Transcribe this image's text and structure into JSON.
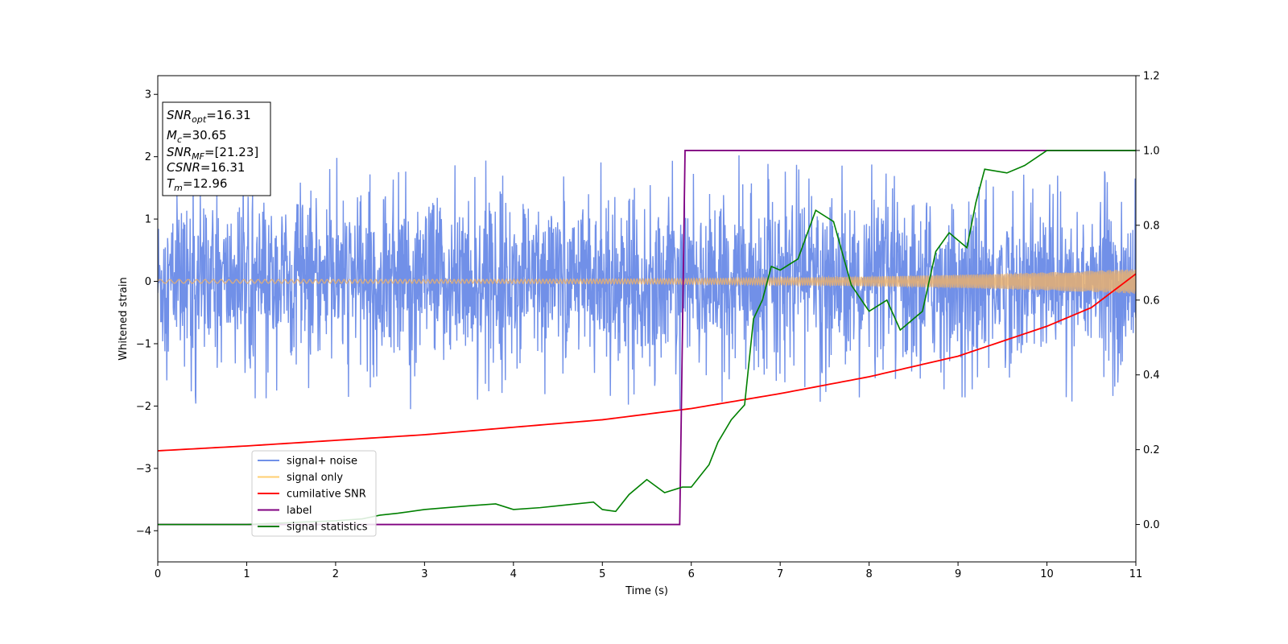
{
  "chart_data": {
    "type": "line",
    "xlabel": "Time (s)",
    "ylabel": "Whitened strain",
    "xlim": [
      0,
      11
    ],
    "ylim_left": [
      -4.5,
      3.3
    ],
    "ylim_right": [
      -0.1,
      1.2
    ],
    "x_ticks": [
      "0",
      "1",
      "2",
      "3",
      "4",
      "5",
      "6",
      "7",
      "8",
      "9",
      "10",
      "11"
    ],
    "y_ticks_left": [
      "3",
      "2",
      "1",
      "0",
      "−1",
      "−2",
      "−3",
      "−4"
    ],
    "y_ticks_right": [
      "1.2",
      "1.0",
      "0.8",
      "0.6",
      "0.4",
      "0.2",
      "0.0"
    ],
    "annotation": {
      "lines": [
        {
          "var": "SNR",
          "sub": "opt",
          "value": "=16.31"
        },
        {
          "var": "M",
          "sub": "c",
          "value": "=30.65"
        },
        {
          "var": "SNR",
          "sub": "MF",
          "value": "=[21.23]"
        },
        {
          "var": "CSNR",
          "sub": "",
          "value": "=16.31"
        },
        {
          "var": "T",
          "sub": "m",
          "value": "=12.96"
        }
      ]
    },
    "legend": {
      "position": "lower left",
      "entries": [
        {
          "label": "signal+ noise",
          "color": "#7190e8"
        },
        {
          "label": "signal only",
          "color": "#ffcf70"
        },
        {
          "label": "cumilative SNR",
          "color": "#ff0000"
        },
        {
          "label": "label",
          "color": "#800080"
        },
        {
          "label": "signal statistics",
          "color": "#008000"
        }
      ]
    },
    "series": [
      {
        "name": "signal+ noise",
        "axis": "left",
        "color": "#7190e8",
        "description": "whitened noisy strain, roughly uniform amplitude about 0 with spikes between -2.05 and 2.1",
        "envelope": {
          "min": -2.05,
          "max": 2.1,
          "typical_amplitude": 1.1
        }
      },
      {
        "name": "signal only",
        "axis": "left",
        "color": "#e8b070",
        "description": "chirp waveform centered at 0, amplitude growing from about 0.03 at t=0 to about 0.2 at t=11"
      },
      {
        "name": "cumilative SNR",
        "axis": "right",
        "color": "#ff0000",
        "x": [
          0,
          1,
          2,
          3,
          4,
          5,
          6,
          7,
          8,
          9,
          10,
          10.5,
          11
        ],
        "y": [
          0.197,
          0.21,
          0.225,
          0.24,
          0.26,
          0.28,
          0.31,
          0.35,
          0.395,
          0.45,
          0.53,
          0.58,
          0.67
        ]
      },
      {
        "name": "label",
        "axis": "right",
        "color": "#800080",
        "x": [
          0,
          5.87,
          5.93,
          11
        ],
        "y": [
          0,
          0,
          1,
          1
        ]
      },
      {
        "name": "signal statistics",
        "axis": "right",
        "color": "#008000",
        "x": [
          0,
          0.5,
          1.0,
          1.5,
          2.0,
          2.3,
          2.5,
          2.7,
          3.0,
          3.5,
          3.8,
          4.0,
          4.3,
          4.5,
          4.9,
          5.0,
          5.15,
          5.3,
          5.5,
          5.7,
          5.9,
          6.0,
          6.1,
          6.2,
          6.3,
          6.45,
          6.6,
          6.7,
          6.8,
          6.9,
          7.0,
          7.2,
          7.4,
          7.6,
          7.8,
          8.0,
          8.2,
          8.35,
          8.5,
          8.6,
          8.75,
          8.9,
          9.1,
          9.2,
          9.3,
          9.55,
          9.75,
          10.0,
          10.5,
          11.0
        ],
        "y": [
          0.0,
          0.0,
          0.0,
          0.005,
          0.01,
          0.015,
          0.025,
          0.03,
          0.04,
          0.05,
          0.055,
          0.04,
          0.045,
          0.05,
          0.06,
          0.04,
          0.035,
          0.08,
          0.12,
          0.085,
          0.1,
          0.1,
          0.13,
          0.16,
          0.22,
          0.28,
          0.32,
          0.55,
          0.6,
          0.69,
          0.68,
          0.71,
          0.84,
          0.81,
          0.64,
          0.57,
          0.6,
          0.52,
          0.55,
          0.57,
          0.73,
          0.78,
          0.74,
          0.86,
          0.95,
          0.94,
          0.96,
          1.0,
          1.0,
          1.0
        ]
      }
    ]
  }
}
